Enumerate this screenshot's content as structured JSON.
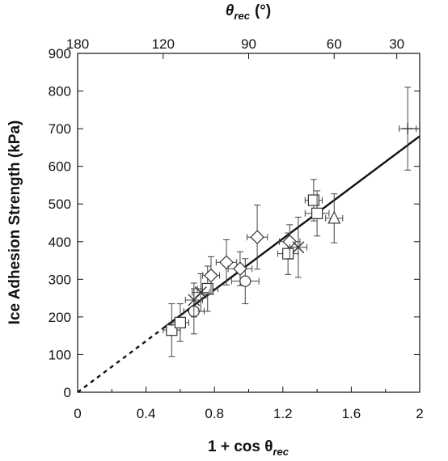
{
  "chart_data": {
    "type": "scatter",
    "xlabel": "1 + cos θ",
    "xlabel_subscript": "rec",
    "ylabel": "Ice Adhesion Strength (kPa)",
    "top_axis_label": "θ",
    "top_axis_subscript": "rec",
    "top_axis_unit": "(°)",
    "xlim": [
      0,
      2
    ],
    "ylim": [
      0,
      900
    ],
    "x_ticks": [
      0,
      0.4,
      0.8,
      1.2,
      1.6,
      2
    ],
    "x_tick_labels": [
      "0",
      "0.4",
      "0.8",
      "1.2",
      "1.6",
      "2"
    ],
    "y_ticks": [
      0,
      100,
      200,
      300,
      400,
      500,
      600,
      700,
      800,
      900
    ],
    "y_tick_labels": [
      "0",
      "100",
      "200",
      "300",
      "400",
      "500",
      "600",
      "700",
      "800",
      "900"
    ],
    "top_ticks": [
      180,
      120,
      90,
      60,
      30
    ],
    "top_tick_labels": [
      "180",
      "120",
      "90",
      "60",
      "30"
    ],
    "grid": false,
    "fit_line": {
      "slope": 340,
      "intercept": 0,
      "solid_from_x": 0.5,
      "solid_to_x": 2.0,
      "dashed_from_x": 0,
      "dashed_to_x": 0.5
    },
    "series": [
      {
        "marker": "square",
        "points": [
          {
            "x": 0.55,
            "y": 165,
            "xerr": 0.05,
            "yerr": 70
          },
          {
            "x": 0.6,
            "y": 185,
            "xerr": 0.05,
            "yerr": 50
          },
          {
            "x": 0.76,
            "y": 275,
            "xerr": 0.06,
            "yerr": 60
          },
          {
            "x": 1.23,
            "y": 368,
            "xerr": 0.06,
            "yerr": 55
          },
          {
            "x": 1.38,
            "y": 510,
            "xerr": 0.05,
            "yerr": 55
          },
          {
            "x": 1.4,
            "y": 475,
            "xerr": 0.07,
            "yerr": 60
          }
        ]
      },
      {
        "marker": "circle",
        "points": [
          {
            "x": 0.68,
            "y": 215,
            "xerr": 0.06,
            "yerr": 60
          },
          {
            "x": 0.98,
            "y": 295,
            "xerr": 0.08,
            "yerr": 60
          }
        ]
      },
      {
        "marker": "diamond",
        "points": [
          {
            "x": 0.78,
            "y": 310,
            "xerr": 0.05,
            "yerr": 50
          },
          {
            "x": 0.87,
            "y": 345,
            "xerr": 0.06,
            "yerr": 60
          },
          {
            "x": 0.95,
            "y": 328,
            "xerr": 0.07,
            "yerr": 45
          },
          {
            "x": 1.05,
            "y": 412,
            "xerr": 0.06,
            "yerr": 85
          },
          {
            "x": 1.24,
            "y": 400,
            "xerr": 0.06,
            "yerr": 45
          }
        ]
      },
      {
        "marker": "cross",
        "points": [
          {
            "x": 0.68,
            "y": 245,
            "xerr": 0.05,
            "yerr": 45
          },
          {
            "x": 0.72,
            "y": 265,
            "xerr": 0.05,
            "yerr": 50
          },
          {
            "x": 1.29,
            "y": 385,
            "xerr": 0.05,
            "yerr": 80
          }
        ]
      },
      {
        "marker": "triangle",
        "points": [
          {
            "x": 1.5,
            "y": 462,
            "xerr": 0.05,
            "yerr": 65
          }
        ]
      },
      {
        "marker": "plus",
        "points": [
          {
            "x": 1.93,
            "y": 700,
            "xerr": 0.05,
            "yerr": 110
          }
        ]
      }
    ]
  }
}
